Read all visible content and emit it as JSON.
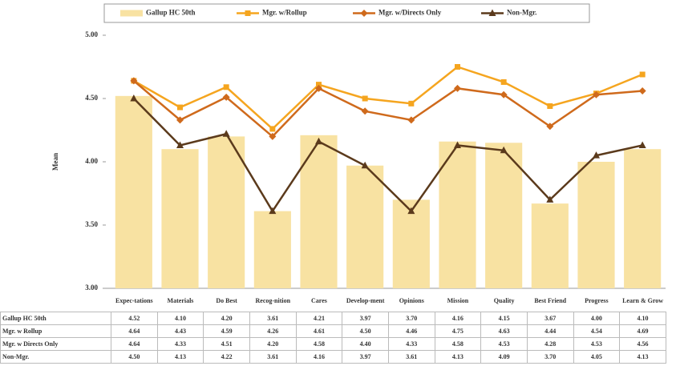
{
  "chart_data": {
    "type": "bar",
    "y_label": "Mean",
    "categories": [
      "Expec-tations",
      "Materials",
      "Do Best",
      "Recog-nition",
      "Cares",
      "Develop-ment",
      "Opinions",
      "Mission",
      "Quality",
      "Best Friend",
      "Progress",
      "Learn & Grow"
    ],
    "ylim": [
      3,
      5
    ],
    "yticks": [
      {
        "value": 3,
        "label": "3.00"
      },
      {
        "value": 3.5,
        "label": "3.50"
      },
      {
        "value": 4,
        "label": "4.00"
      },
      {
        "value": 4.5,
        "label": "4.50"
      },
      {
        "value": 5,
        "label": "5.00"
      }
    ],
    "grid": false,
    "legend": "top",
    "series": [
      {
        "name": "Gallup HC 50th",
        "type": "bar",
        "color": "#f8e2a2",
        "values": [
          4.52,
          4.1,
          4.2,
          3.61,
          4.21,
          3.97,
          3.7,
          4.16,
          4.15,
          3.67,
          4.0,
          4.1
        ],
        "value_labels": [
          "4.52",
          "4.10",
          "4.20",
          "3.61",
          "4.21",
          "3.97",
          "3.70",
          "4.16",
          "4.15",
          "3.67",
          "4.00",
          "4.10"
        ]
      },
      {
        "name": "Mgr. w/Rollup",
        "table_name": "Mgr. w Rollup",
        "type": "line",
        "marker": "square",
        "color": "#f5a51f",
        "values": [
          4.64,
          4.43,
          4.59,
          4.26,
          4.61,
          4.5,
          4.46,
          4.75,
          4.63,
          4.44,
          4.54,
          4.69
        ],
        "value_labels": [
          "4.64",
          "4.43",
          "4.59",
          "4.26",
          "4.61",
          "4.50",
          "4.46",
          "4.75",
          "4.63",
          "4.44",
          "4.54",
          "4.69"
        ]
      },
      {
        "name": "Mgr. w/Directs Only",
        "table_name": "Mgr. w Directs Only",
        "type": "line",
        "marker": "diamond",
        "color": "#cf6a1c",
        "values": [
          4.64,
          4.33,
          4.51,
          4.2,
          4.58,
          4.4,
          4.33,
          4.58,
          4.53,
          4.28,
          4.53,
          4.56
        ],
        "value_labels": [
          "4.64",
          "4.33",
          "4.51",
          "4.20",
          "4.58",
          "4.40",
          "4.33",
          "4.58",
          "4.53",
          "4.28",
          "4.53",
          "4.56"
        ]
      },
      {
        "name": "Non-Mgr.",
        "table_name": "Non-Mgr.",
        "type": "line",
        "marker": "triangle",
        "color": "#5b3a1c",
        "values": [
          4.5,
          4.13,
          4.22,
          3.61,
          4.16,
          3.97,
          3.61,
          4.13,
          4.09,
          3.7,
          4.05,
          4.13
        ],
        "value_labels": [
          "4.50",
          "4.13",
          "4.22",
          "3.61",
          "4.16",
          "3.97",
          "3.61",
          "4.13",
          "4.09",
          "3.70",
          "4.05",
          "4.13"
        ]
      }
    ]
  }
}
